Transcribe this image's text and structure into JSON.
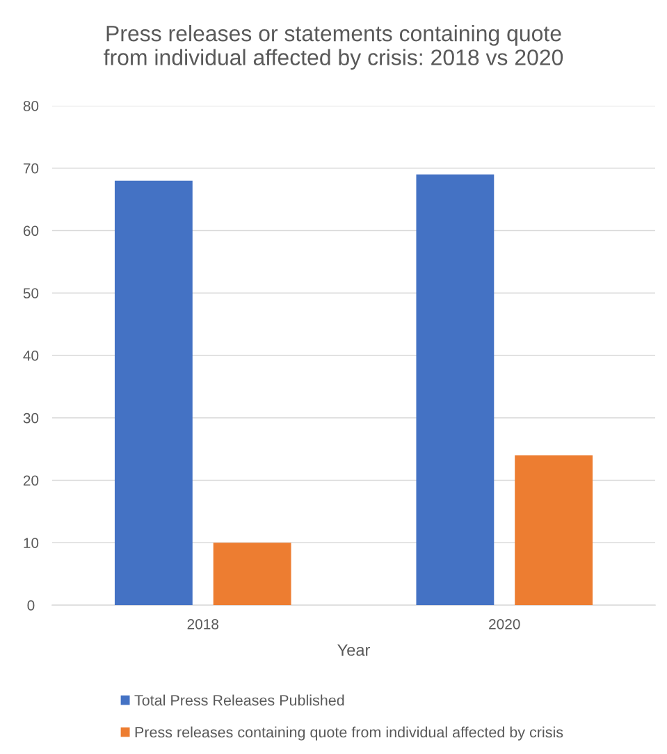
{
  "chart_data": {
    "type": "bar",
    "title": "Press releases or statements containing quote from individual affected by crisis: 2018 vs 2020",
    "xlabel": "Year",
    "categories": [
      "2018",
      "2020"
    ],
    "series": [
      {
        "name": "Total Press Releases Published",
        "color": "#4472c4",
        "values": [
          68,
          69
        ]
      },
      {
        "name": "Press releases containing quote from individual affected by crisis",
        "color": "#ed7d31",
        "values": [
          10,
          24
        ]
      }
    ],
    "ylim": [
      0,
      80
    ],
    "yticks": [
      0,
      10,
      20,
      30,
      40,
      50,
      60,
      70,
      80
    ],
    "grid": "y",
    "legend": "bottom"
  }
}
